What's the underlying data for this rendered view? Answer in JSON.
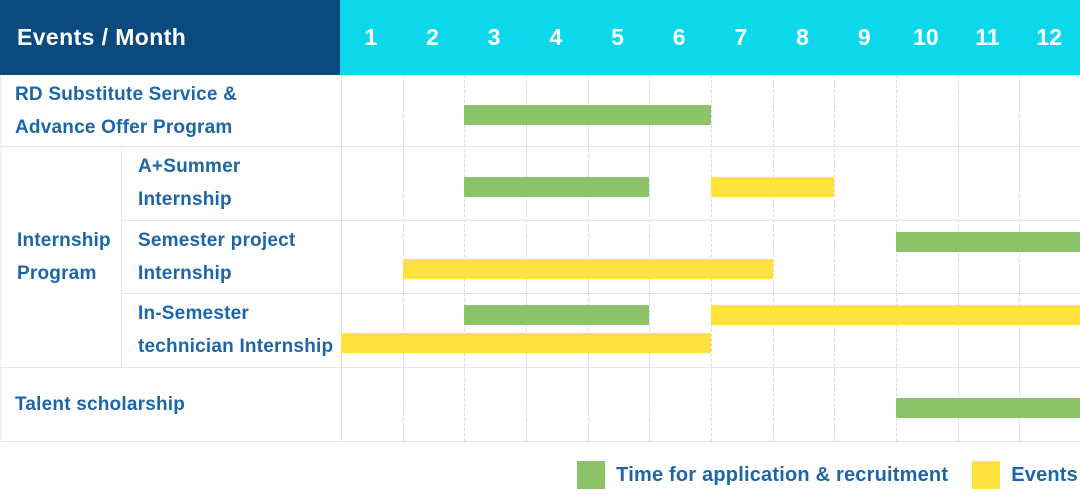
{
  "chart_data": {
    "type": "bar",
    "subtype": "gantt-timeline",
    "title": "Events / Month",
    "x_axis_label": "Month",
    "x_categories": [
      "1",
      "2",
      "3",
      "4",
      "5",
      "6",
      "7",
      "8",
      "9",
      "10",
      "11",
      "12"
    ],
    "x_range": [
      1,
      12
    ],
    "grid": true,
    "legend_position": "bottom-right",
    "legend": [
      {
        "key": "application",
        "label": "Time for application & recruitment",
        "color": "#8cc369"
      },
      {
        "key": "events",
        "label": "Events",
        "color": "#ffe23d"
      }
    ],
    "colors": {
      "header_navy": "#0b4a7f",
      "header_cyan": "#0cd8ec",
      "application_green": "#8cc369",
      "events_yellow": "#ffe23d",
      "label_text_blue": "#1d65a9",
      "grid_line": "#e4e4e4"
    },
    "group_label": "Internship Program",
    "group_label_lines": [
      "Internship",
      "Program"
    ],
    "rows": [
      {
        "group": null,
        "label": "RD Substitute Service & Advance Offer Program",
        "label_lines": [
          "RD Substitute Service &",
          "Advance Offer Program"
        ],
        "bars": [
          {
            "series": "application",
            "start_month": 3,
            "end_month": 6,
            "lane": "mid"
          }
        ]
      },
      {
        "group": "Internship Program",
        "label": "A+Summer Internship",
        "label_lines": [
          "A+Summer",
          "Internship"
        ],
        "bars": [
          {
            "series": "application",
            "start_month": 3,
            "end_month": 5,
            "lane": "mid"
          },
          {
            "series": "events",
            "start_month": 7,
            "end_month": 8,
            "lane": "mid"
          }
        ]
      },
      {
        "group": "Internship Program",
        "label": "Semester project Internship",
        "label_lines": [
          "Semester project",
          "Internship"
        ],
        "bars": [
          {
            "series": "application",
            "start_month": 10,
            "end_month": 12,
            "lane": "upper"
          },
          {
            "series": "events",
            "start_month": 2,
            "end_month": 7,
            "lane": "lower"
          }
        ]
      },
      {
        "group": "Internship Program",
        "label": "In-Semester technician Internship",
        "label_lines": [
          "In-Semester",
          "technician Internship"
        ],
        "bars": [
          {
            "series": "application",
            "start_month": 3,
            "end_month": 5,
            "lane": "upper"
          },
          {
            "series": "events",
            "start_month": 7,
            "end_month": 12,
            "lane": "upper"
          },
          {
            "series": "events",
            "start_month": 1,
            "end_month": 6,
            "lane": "lower"
          }
        ]
      },
      {
        "group": null,
        "label": "Talent scholarship",
        "label_lines": [
          "Talent scholarship"
        ],
        "bars": [
          {
            "series": "application",
            "start_month": 10,
            "end_month": 12,
            "lane": "mid"
          }
        ]
      }
    ]
  }
}
